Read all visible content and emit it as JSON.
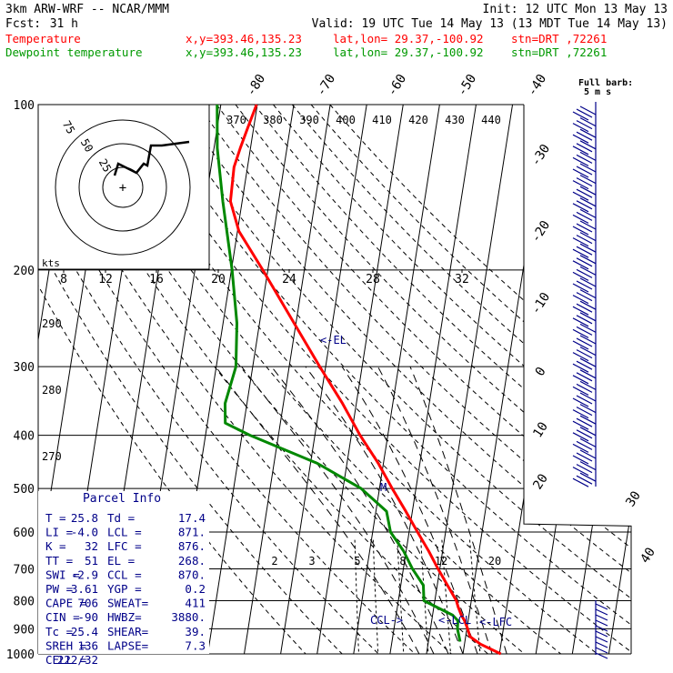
{
  "header": {
    "model": "3km ARW-WRF -- NCAR/MMM",
    "init": "Init: 12 UTC Mon 13 May 13",
    "fcst_label": "Fcst:",
    "fcst_value": "31 h",
    "valid": "Valid: 19 UTC Tue 14 May 13 (13 MDT Tue 14 May 13)",
    "lines": [
      {
        "label": "Temperature",
        "xy": "x,y=393.46,135.23",
        "latlon": "lat,lon= 29.37,-100.92",
        "stn": "stn=DRT ,72261",
        "color": "#ff0000"
      },
      {
        "label": "Dewpoint temperature",
        "xy": "x,y=393.46,135.23",
        "latlon": "lat,lon= 29.37,-100.92",
        "stn": "stn=DRT ,72261",
        "color": "#009900"
      }
    ]
  },
  "barb_key": {
    "line1": "Full barb:",
    "line2": "5 m s"
  },
  "parcel_info": {
    "title": "Parcel Info",
    "rows": [
      [
        "T  =",
        "25.8",
        "Td =",
        "17.4"
      ],
      [
        "LI =",
        "-4.0",
        "LCL =",
        "871."
      ],
      [
        "K  =",
        "32",
        "LFC =",
        "876."
      ],
      [
        "TT =",
        "51",
        "EL  =",
        "268."
      ],
      [
        "SWI =",
        "-2.9",
        "CCL =",
        "870."
      ],
      [
        "PW =",
        "3.61",
        "YGP =",
        "0.2"
      ],
      [
        "CAPE =",
        "706",
        "SWEAT=",
        "411"
      ],
      [
        "CIN =",
        "-90",
        "HWBZ=",
        "3880."
      ],
      [
        "Tc =",
        "25.4",
        "SHEAR=",
        "39."
      ],
      [
        "SREH =",
        "136",
        "LAPSE=",
        "7.3"
      ],
      [
        "CELL =",
        "222/32",
        "",
        ""
      ]
    ]
  },
  "annotations": {
    "el": "<-EL",
    "ccl": "CCL->",
    "lcl": "<-LCL",
    "lfc": "<-LFC",
    "m": "M",
    "kts": "kts"
  },
  "colors": {
    "axes": "#000000",
    "temperature": "#ff0000",
    "dewpoint": "#008800",
    "hodograph": "#000000",
    "text_blue": "#000088",
    "barbs": "#000088"
  },
  "chart_data": {
    "type": "line",
    "subtype": "skew-t log-p sounding",
    "y_scale": "log",
    "pressure_levels": [
      100,
      200,
      300,
      400,
      500,
      600,
      700,
      800,
      900,
      1000
    ],
    "pressure_labels": [
      "100",
      "200",
      "300",
      "400",
      "500",
      "600",
      "700",
      "800",
      "900",
      "1000"
    ],
    "isotherm_labels": [
      "-80",
      "-70",
      "-60",
      "-50",
      "-40",
      "-30",
      "-20",
      "-10",
      "0",
      "10",
      "20",
      "30",
      "40"
    ],
    "theta_labels": [
      "370",
      "380",
      "390",
      "400",
      "410",
      "420",
      "430",
      "440"
    ],
    "dry_adiabat_labels": [
      "290",
      "280",
      "270"
    ],
    "mixing_ratio_labels": [
      "2",
      "3",
      "5",
      "8",
      "12",
      "20"
    ],
    "hodograph": {
      "speed_labels": [
        "8",
        "12",
        "16",
        "20",
        "24",
        "28",
        "32"
      ],
      "ring_labels": [
        "75",
        "50",
        "25"
      ],
      "units": "kts"
    },
    "series": [
      {
        "name": "Temperature",
        "color": "#ff0000",
        "points": [
          [
            1000,
            30.4
          ],
          [
            960,
            24.4
          ],
          [
            930,
            21.2
          ],
          [
            900,
            20.2
          ],
          [
            870,
            19.0
          ],
          [
            850,
            17.9
          ],
          [
            820,
            16.6
          ],
          [
            800,
            15.9
          ],
          [
            750,
            12.8
          ],
          [
            700,
            9.5
          ],
          [
            650,
            6.2
          ],
          [
            600,
            2.3
          ],
          [
            550,
            -1.8
          ],
          [
            500,
            -6.5
          ],
          [
            450,
            -11.4
          ],
          [
            400,
            -17.6
          ],
          [
            350,
            -23.8
          ],
          [
            300,
            -31.6
          ],
          [
            250,
            -40.5
          ],
          [
            200,
            -51.4
          ],
          [
            170,
            -59.6
          ],
          [
            150,
            -63.2
          ],
          [
            130,
            -63.7
          ],
          [
            120,
            -62.8
          ],
          [
            110,
            -61.6
          ],
          [
            100,
            -60.2
          ]
        ]
      },
      {
        "name": "Dewpoint temperature",
        "color": "#008800",
        "points": [
          [
            950,
            18.7
          ],
          [
            900,
            17.4
          ],
          [
            870,
            17.2
          ],
          [
            850,
            15.5
          ],
          [
            800,
            7.0
          ],
          [
            750,
            6.2
          ],
          [
            700,
            2.5
          ],
          [
            650,
            -0.7
          ],
          [
            600,
            -5.1
          ],
          [
            550,
            -7.1
          ],
          [
            500,
            -15.0
          ],
          [
            450,
            -28.1
          ],
          [
            400,
            -47.8
          ],
          [
            380,
            -55.1
          ],
          [
            350,
            -56.0
          ],
          [
            300,
            -54.6
          ],
          [
            250,
            -56.2
          ],
          [
            200,
            -59.8
          ],
          [
            150,
            -65.3
          ],
          [
            120,
            -69.1
          ],
          [
            100,
            -71.0
          ]
        ]
      }
    ]
  }
}
